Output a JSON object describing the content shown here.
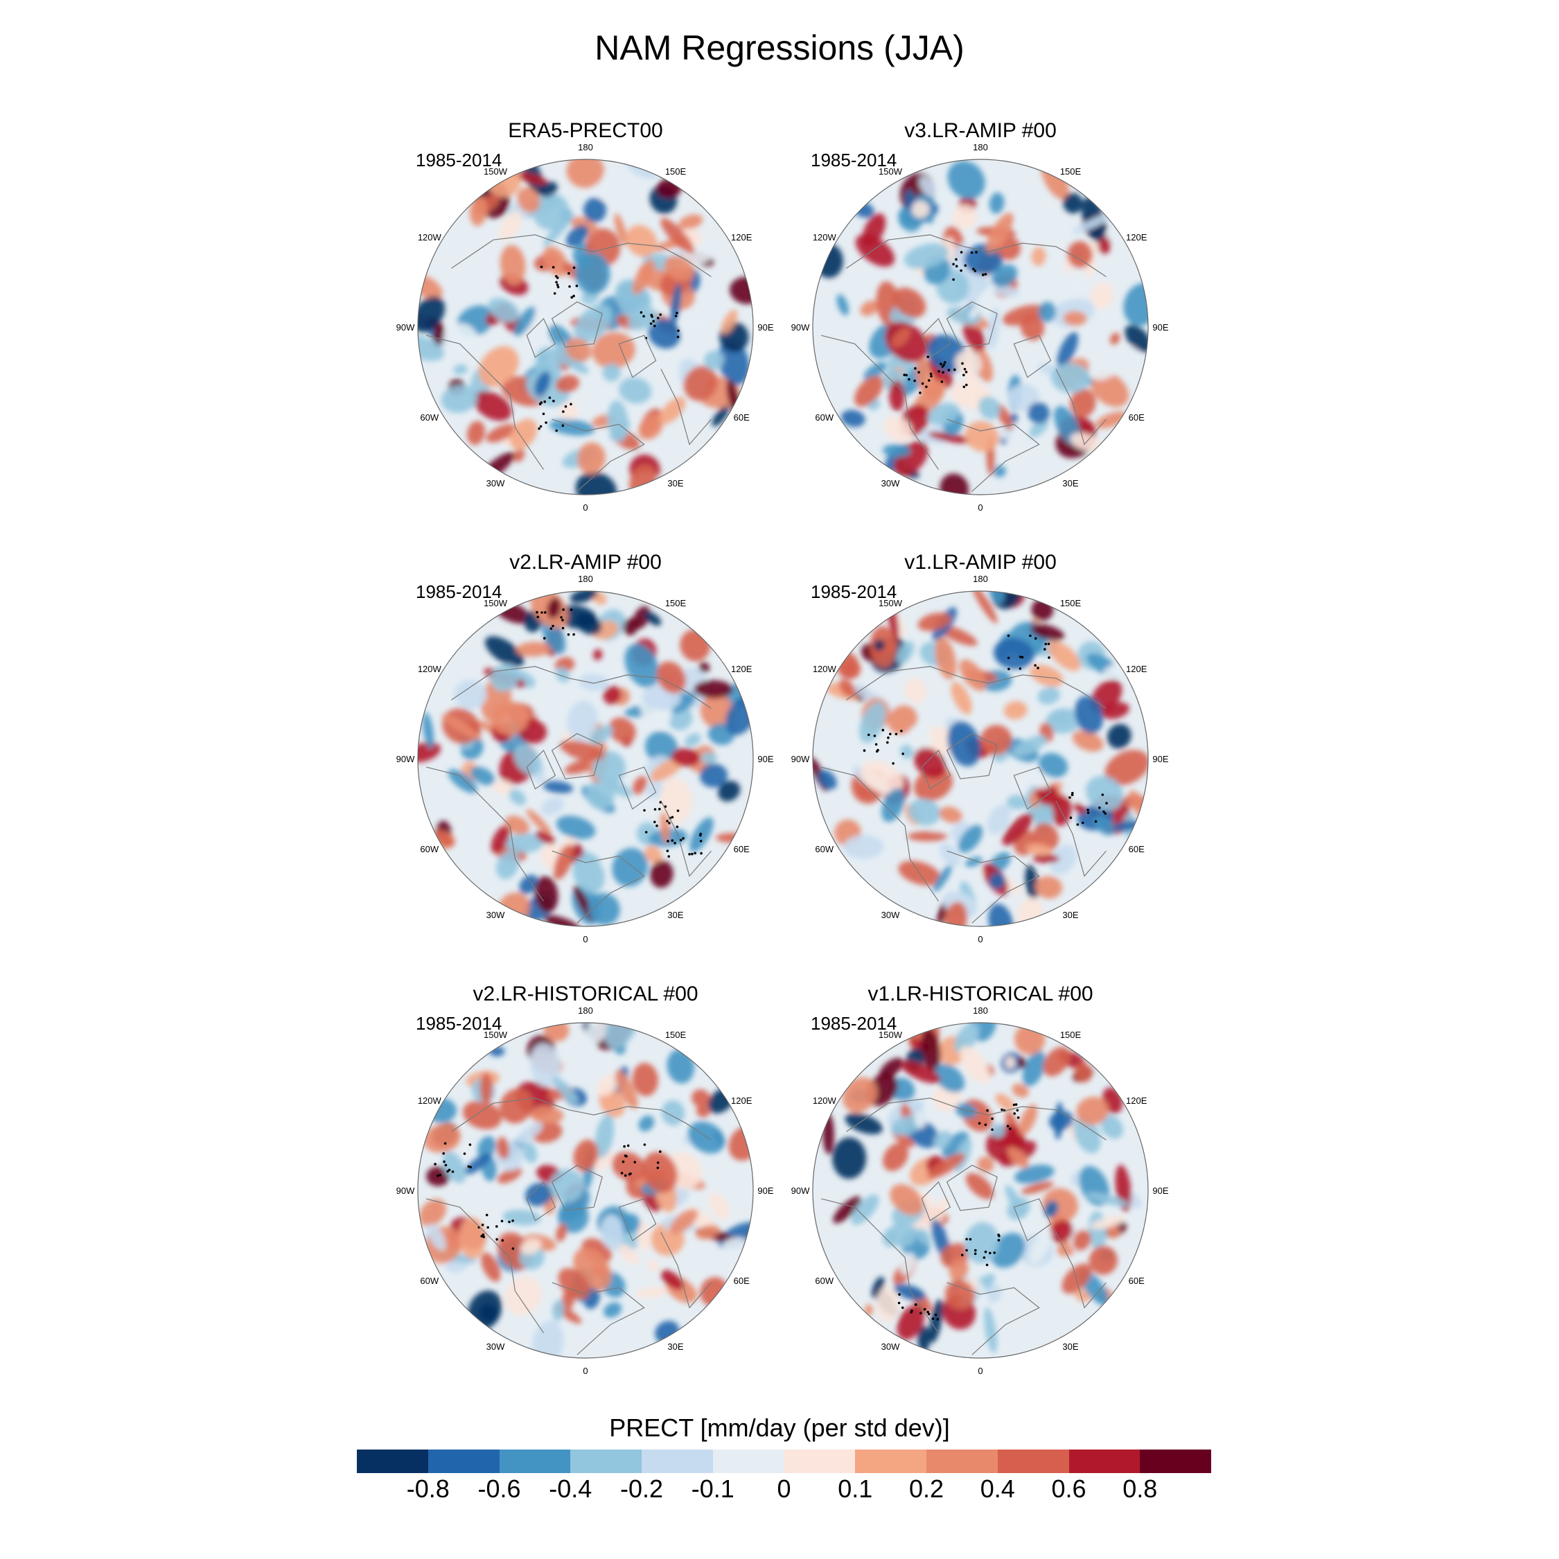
{
  "figure": {
    "title": "NAM Regressions (JJA)"
  },
  "panels": [
    {
      "title": "ERA5-PRECT00",
      "period": "1985-2014"
    },
    {
      "title": "v3.LR-AMIP  #00",
      "period": "1985-2014"
    },
    {
      "title": "v2.LR-AMIP  #00",
      "period": "1985-2014"
    },
    {
      "title": "v1.LR-AMIP  #00",
      "period": "1985-2014"
    },
    {
      "title": "v2.LR-HISTORICAL  #00",
      "period": "1985-2014"
    },
    {
      "title": "v1.LR-HISTORICAL  #00",
      "period": "1985-2014"
    }
  ],
  "longitude_labels": [
    "180",
    "150E",
    "120E",
    "90E",
    "60E",
    "30E",
    "0",
    "30W",
    "60W",
    "90W",
    "120W",
    "150W"
  ],
  "colorbar": {
    "title": "PRECT [mm/day (per std dev)]",
    "tick_labels": [
      "-0.8",
      "-0.6",
      "-0.4",
      "-0.2",
      "-0.1",
      "0",
      "0.1",
      "0.2",
      "0.4",
      "0.6",
      "0.8"
    ],
    "colors": [
      "#053061",
      "#2166ac",
      "#4393c3",
      "#92c5de",
      "#c6dbef",
      "#e6eef4",
      "#fbe5dc",
      "#f4a582",
      "#e8896c",
      "#d6604d",
      "#b2182b",
      "#67001f"
    ]
  },
  "chart_data": {
    "type": "heatmap",
    "projection": "north-polar-stereographic",
    "variable": "PRECT",
    "units": "mm/day (per std dev)",
    "levels": [
      -0.8,
      -0.6,
      -0.4,
      -0.2,
      -0.1,
      0,
      0.1,
      0.2,
      0.4,
      0.6,
      0.8
    ],
    "panels": [
      {
        "name": "ERA5-PRECT00",
        "period": "1985-2014",
        "stippling": true
      },
      {
        "name": "v3.LR-AMIP  #00",
        "period": "1985-2014",
        "stippling": true
      },
      {
        "name": "v2.LR-AMIP  #00",
        "period": "1985-2014",
        "stippling": true
      },
      {
        "name": "v1.LR-AMIP  #00",
        "period": "1985-2014",
        "stippling": true
      },
      {
        "name": "v2.LR-HISTORICAL  #00",
        "period": "1985-2014",
        "stippling": true
      },
      {
        "name": "v1.LR-HISTORICAL  #00",
        "period": "1985-2014",
        "stippling": true
      }
    ]
  }
}
